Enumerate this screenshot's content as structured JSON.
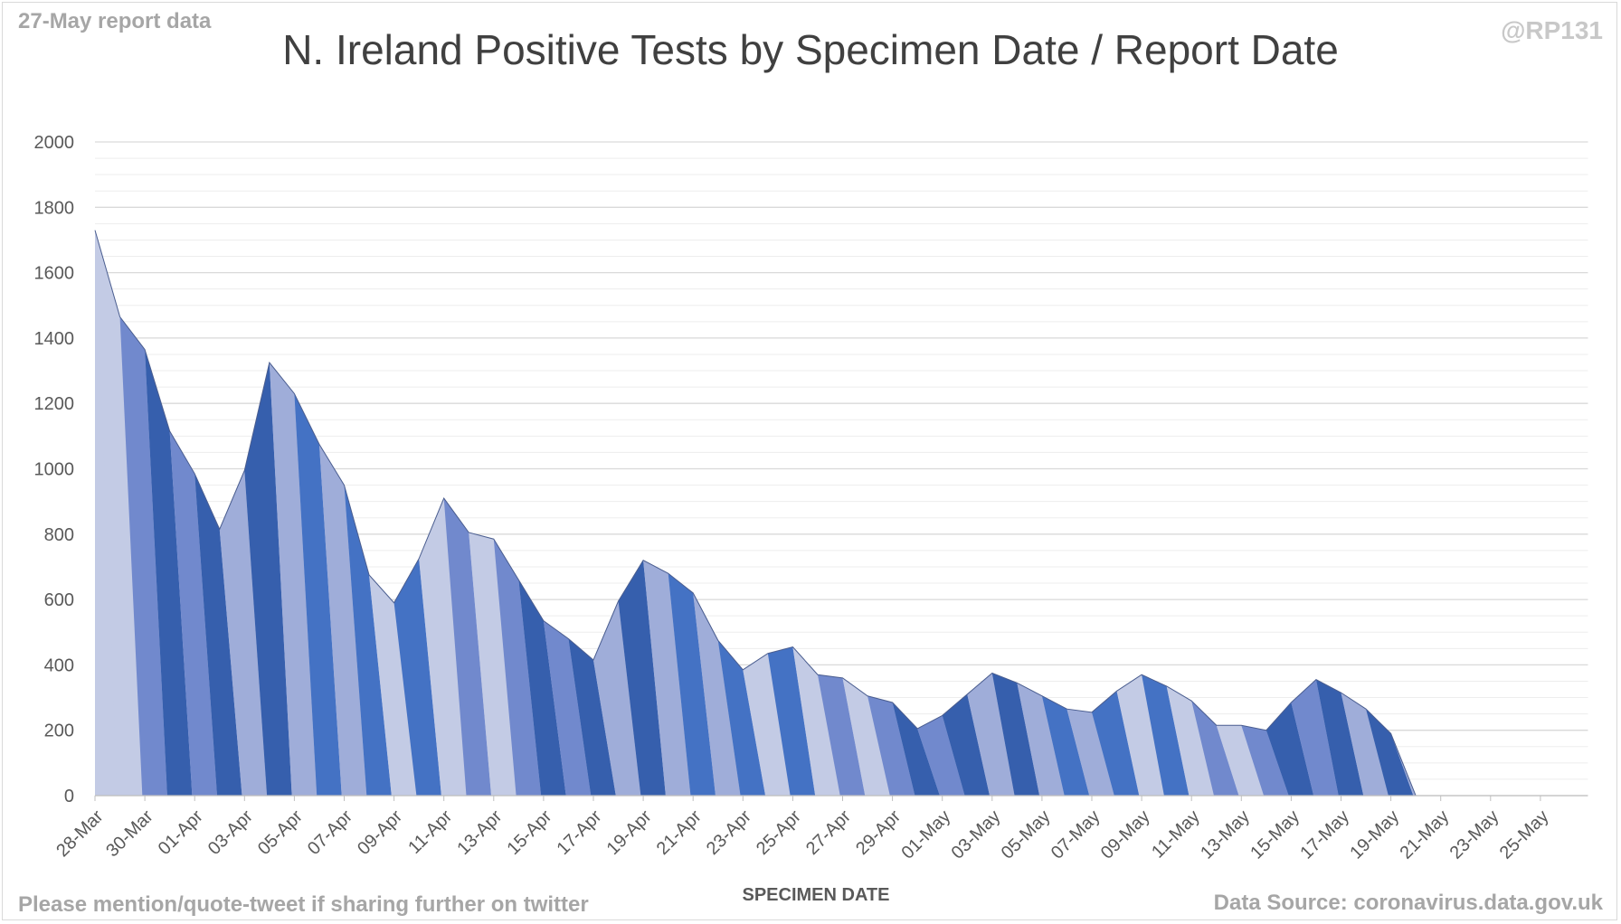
{
  "header": {
    "report_note": "27-May report data",
    "handle": "@RP131"
  },
  "footer": {
    "left": "Please mention/quote-tweet if sharing further on twitter",
    "right": "Data Source: coronavirus.data.gov.uk"
  },
  "colors": {
    "band_palette": [
      "#c3cbe5",
      "#9fadd9",
      "#7189cd",
      "#4472c4",
      "#365fad"
    ],
    "grid_major": "#d9d9d9",
    "grid_minor": "#ededed"
  },
  "chart_data": {
    "type": "area",
    "title": "N. Ireland Positive Tests by Specimen Date / Report Date",
    "xlabel": "SPECIMEN DATE",
    "ylabel": "",
    "ylim": [
      0,
      2000
    ],
    "yticks": [
      0,
      200,
      400,
      600,
      800,
      1000,
      1200,
      1400,
      1600,
      1800,
      2000
    ],
    "x_tick_labels": [
      "28-Mar",
      "30-Mar",
      "01-Apr",
      "03-Apr",
      "05-Apr",
      "07-Apr",
      "09-Apr",
      "11-Apr",
      "13-Apr",
      "15-Apr",
      "17-Apr",
      "19-Apr",
      "21-Apr",
      "23-Apr",
      "25-Apr",
      "27-Apr",
      "29-Apr",
      "01-May",
      "03-May",
      "05-May",
      "07-May",
      "09-May",
      "11-May",
      "13-May",
      "15-May",
      "17-May",
      "19-May",
      "21-May",
      "23-May",
      "25-May"
    ],
    "x_dates": [
      "28-Mar",
      "29-Mar",
      "30-Mar",
      "31-Mar",
      "01-Apr",
      "02-Apr",
      "03-Apr",
      "04-Apr",
      "05-Apr",
      "06-Apr",
      "07-Apr",
      "08-Apr",
      "09-Apr",
      "10-Apr",
      "11-Apr",
      "12-Apr",
      "13-Apr",
      "14-Apr",
      "15-Apr",
      "16-Apr",
      "17-Apr",
      "18-Apr",
      "19-Apr",
      "20-Apr",
      "21-Apr",
      "22-Apr",
      "23-Apr",
      "24-Apr",
      "25-Apr",
      "26-Apr",
      "27-Apr",
      "28-Apr",
      "29-Apr",
      "30-Apr",
      "01-May",
      "02-May",
      "03-May",
      "04-May",
      "05-May",
      "06-May",
      "07-May",
      "08-May",
      "09-May",
      "10-May",
      "11-May",
      "12-May",
      "13-May",
      "14-May",
      "15-May",
      "16-May",
      "17-May",
      "18-May",
      "19-May",
      "20-May",
      "21-May",
      "22-May",
      "23-May",
      "24-May",
      "25-May",
      "26-May"
    ],
    "total_positive_tests": [
      1730,
      1465,
      1365,
      1115,
      985,
      815,
      995,
      1325,
      1230,
      1075,
      950,
      675,
      590,
      725,
      910,
      805,
      785,
      660,
      535,
      480,
      415,
      595,
      720,
      680,
      620,
      475,
      385,
      435,
      455,
      370,
      360,
      305,
      285,
      205,
      245,
      310,
      375,
      345,
      305,
      265,
      255,
      320,
      370,
      335,
      290,
      215,
      215,
      200,
      285,
      355,
      315,
      265,
      190,
      0,
      0,
      0,
      0,
      0,
      0,
      0
    ],
    "grid": true,
    "legend": "none"
  }
}
